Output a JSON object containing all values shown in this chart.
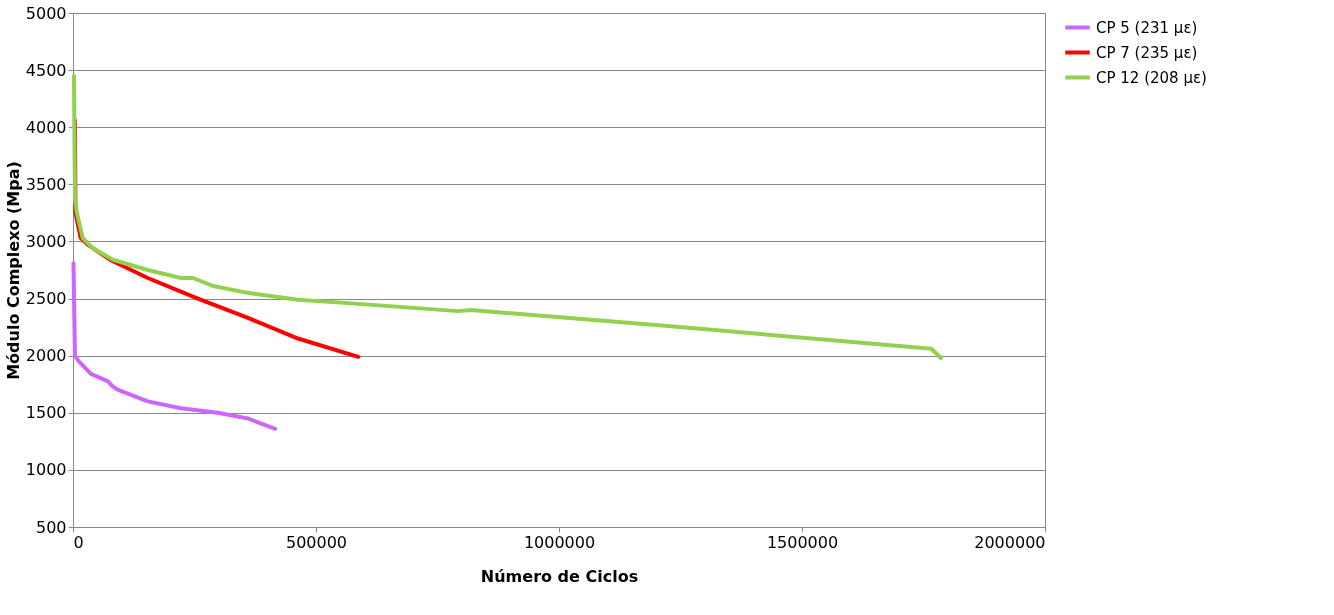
{
  "chart_data": {
    "type": "line",
    "xlabel": "Número de Ciclos",
    "ylabel": "Módulo Complexo (Mpa)",
    "xlim": [
      0,
      2000000
    ],
    "xticks": [
      0,
      500000,
      1000000,
      1500000,
      2000000
    ],
    "ylim": [
      500,
      5000
    ],
    "yticks": [
      500,
      1000,
      1500,
      2000,
      2500,
      3000,
      3500,
      4000,
      4500,
      5000
    ],
    "grid": "y",
    "legend": "right",
    "marker": "none",
    "line_style": "solid",
    "series": [
      {
        "name": "CP 5 (231 µε)",
        "color": "#cc66ff",
        "x": [
          1000,
          4000,
          12000,
          37000,
          72000,
          82000,
          93000,
          154000,
          222000,
          298000,
          360000,
          416000
        ],
        "values": [
          2810,
          2000,
          1950,
          1840,
          1775,
          1730,
          1700,
          1600,
          1540,
          1500,
          1450,
          1360
        ]
      },
      {
        "name": "CP 7 (235 µε)",
        "color": "#ff0000",
        "x": [
          4000,
          5000,
          16000,
          31000,
          76000,
          154000,
          257000,
          360000,
          463000,
          587000
        ],
        "values": [
          4060,
          3250,
          3030,
          2970,
          2840,
          2680,
          2500,
          2330,
          2150,
          1990
        ]
      },
      {
        "name": "CP 12 (208 µε)",
        "color": "#92d050",
        "x": [
          2000,
          4000,
          8000,
          20000,
          41000,
          82000,
          154000,
          222000,
          247000,
          288000,
          360000,
          463000,
          566000,
          792000,
          819000,
          1224000,
          1766000,
          1786000
        ],
        "values": [
          4450,
          3380,
          3250,
          3030,
          2940,
          2840,
          2750,
          2680,
          2680,
          2610,
          2550,
          2490,
          2460,
          2390,
          2400,
          2260,
          2060,
          1980
        ]
      }
    ]
  }
}
